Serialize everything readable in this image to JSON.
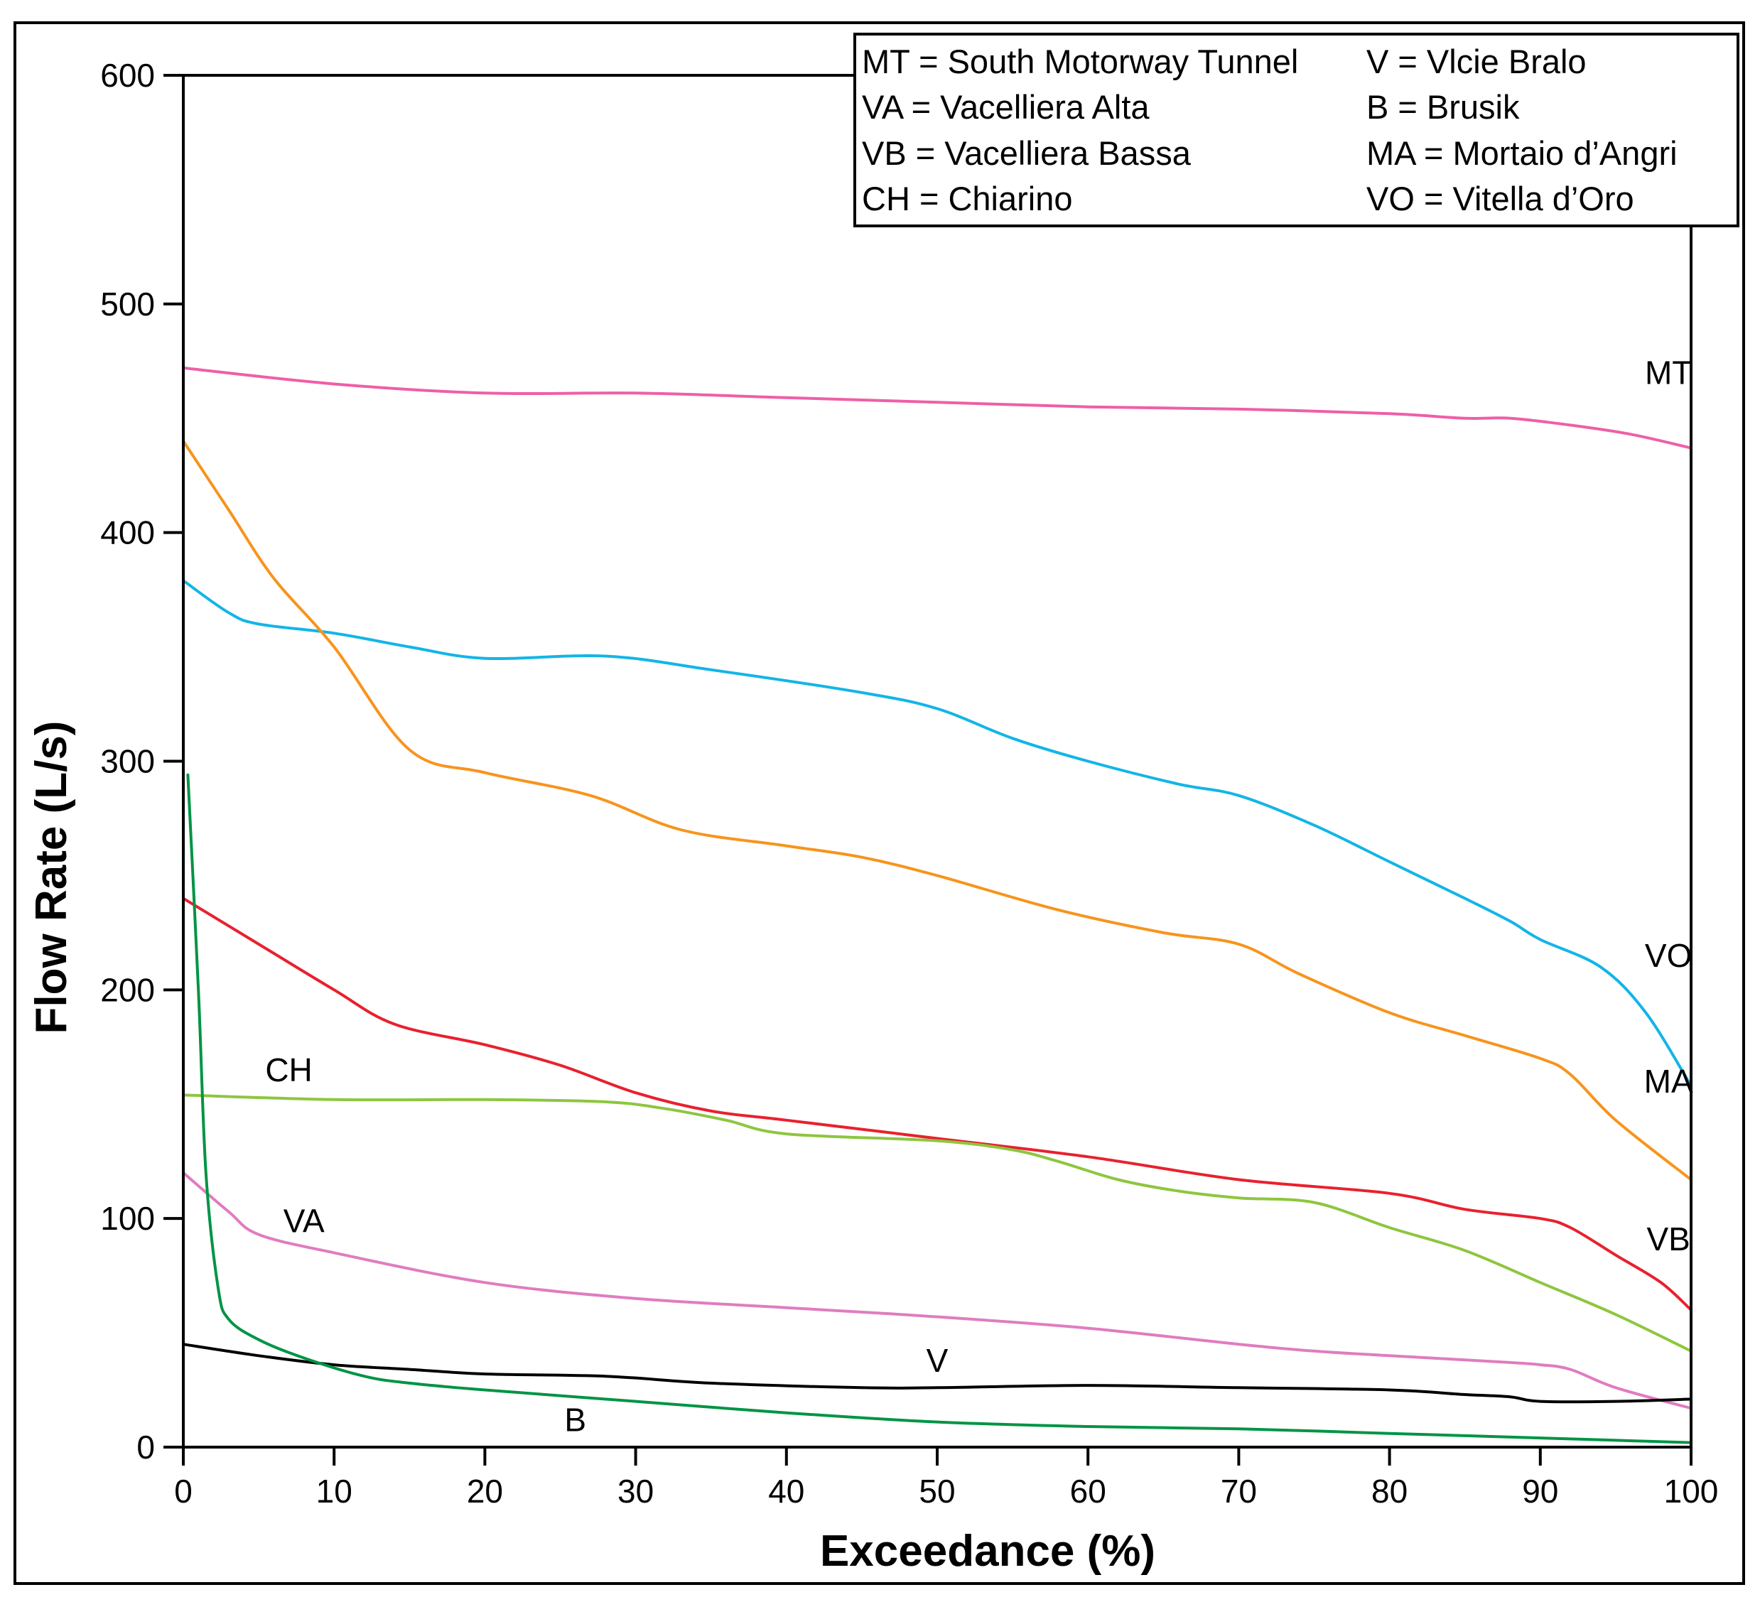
{
  "chart_data": {
    "type": "line",
    "title": "",
    "xlabel": "Exceedance (%)",
    "ylabel": "Flow Rate (L/s)",
    "xlim": [
      0,
      100
    ],
    "ylim": [
      0,
      600
    ],
    "xticks": [
      "0",
      "10",
      "20",
      "30",
      "40",
      "50",
      "60",
      "70",
      "80",
      "90",
      "100"
    ],
    "yticks": [
      "0",
      "100",
      "200",
      "300",
      "400",
      "500",
      "600"
    ],
    "grid": false,
    "legend_position": "top-right",
    "legend": [
      {
        "code": "MT",
        "name": "South Motorway Tunnel",
        "text": "MT = South Motorway Tunnel"
      },
      {
        "code": "VA",
        "name": "Vacelliera Alta",
        "text": "VA = Vacelliera Alta"
      },
      {
        "code": "VB",
        "name": "Vacelliera Bassa",
        "text": "VB = Vacelliera Bassa"
      },
      {
        "code": "CH",
        "name": "Chiarino",
        "text": "CH = Chiarino"
      },
      {
        "code": "V",
        "name": "Vlcie Bralo",
        "text": "V = Vlcie Bralo"
      },
      {
        "code": "B",
        "name": "Brusik",
        "text": "B = Brusik"
      },
      {
        "code": "MA",
        "name": "Mortaio d’Angri",
        "text": "MA = Mortaio d’Angri"
      },
      {
        "code": "VO",
        "name": "Vitella d’Oro",
        "text": "VO = Vitella d’Oro"
      }
    ],
    "series": [
      {
        "name": "MT",
        "label": "MT",
        "color": "#ee5fa7",
        "x": [
          0,
          10,
          20,
          30,
          40,
          50,
          60,
          70,
          80,
          85,
          88,
          92,
          96,
          100
        ],
        "y": [
          472,
          465,
          461,
          461,
          459,
          457,
          455,
          454,
          452,
          450,
          450,
          447,
          443,
          437
        ]
      },
      {
        "name": "VO",
        "label": "VO",
        "color": "#13b5e6",
        "x": [
          0,
          3,
          5,
          10,
          15,
          20,
          28,
          35,
          45,
          50,
          55,
          60,
          66,
          70,
          75,
          80,
          85,
          88,
          90,
          94,
          97,
          100
        ],
        "y": [
          379,
          365,
          360,
          356,
          350,
          345,
          346,
          340,
          330,
          323,
          310,
          300,
          290,
          285,
          272,
          256,
          240,
          230,
          222,
          210,
          190,
          158
        ]
      },
      {
        "name": "MA",
        "label": "MA",
        "color": "#f7941d",
        "x": [
          0,
          3,
          6,
          10,
          15,
          20,
          27,
          33,
          40,
          45,
          50,
          58,
          65,
          70,
          74,
          80,
          85,
          90,
          92,
          95,
          100
        ],
        "y": [
          440,
          410,
          380,
          350,
          305,
          295,
          285,
          270,
          263,
          258,
          250,
          235,
          225,
          220,
          207,
          190,
          180,
          170,
          163,
          143,
          117
        ]
      },
      {
        "name": "VB",
        "label": "VB",
        "color": "#e8212e",
        "x": [
          0,
          5,
          10,
          14,
          20,
          25,
          30,
          35,
          40,
          50,
          60,
          70,
          80,
          85,
          90,
          92,
          95,
          98,
          100
        ],
        "y": [
          240,
          220,
          200,
          185,
          176,
          167,
          155,
          147,
          143,
          135,
          127,
          117,
          111,
          104,
          100,
          96,
          84,
          72,
          60
        ]
      },
      {
        "name": "CH",
        "label": "CH",
        "color": "#8dc63f",
        "x": [
          0,
          10,
          20,
          28,
          32,
          36,
          40,
          50,
          55,
          58,
          62,
          66,
          70,
          75,
          80,
          85,
          90,
          95,
          100
        ],
        "y": [
          154,
          152,
          152,
          151,
          148,
          143,
          137,
          134,
          130,
          125,
          117,
          112,
          109,
          107,
          96,
          86,
          72,
          58,
          42
        ]
      },
      {
        "name": "VA",
        "label": "VA",
        "color": "#e07cc0",
        "x": [
          0,
          3,
          5,
          10,
          20,
          30,
          40,
          50,
          60,
          70,
          75,
          80,
          88,
          90,
          92,
          95,
          100
        ],
        "y": [
          120,
          103,
          93,
          85,
          72,
          65,
          61,
          57,
          52,
          45,
          42,
          40,
          37,
          36,
          34,
          26,
          17
        ]
      },
      {
        "name": "V",
        "label": "V",
        "color": "#000000",
        "x": [
          0,
          5,
          10,
          15,
          20,
          28,
          35,
          45,
          50,
          60,
          70,
          80,
          85,
          88,
          90,
          95,
          100
        ],
        "y": [
          45,
          40,
          36,
          34,
          32,
          31,
          28,
          26,
          26,
          27,
          26,
          25,
          23,
          22,
          20,
          20,
          21
        ]
      },
      {
        "name": "B",
        "label": "B",
        "color": "#009444",
        "x": [
          0.3,
          1,
          1.5,
          2.3,
          3,
          5,
          8,
          12,
          15,
          20,
          30,
          40,
          50,
          60,
          70,
          80,
          90,
          100
        ],
        "y": [
          294,
          200,
          120,
          70,
          56,
          47,
          39,
          31,
          28,
          25,
          20,
          15,
          11,
          9,
          8,
          6,
          4,
          2
        ]
      }
    ]
  }
}
